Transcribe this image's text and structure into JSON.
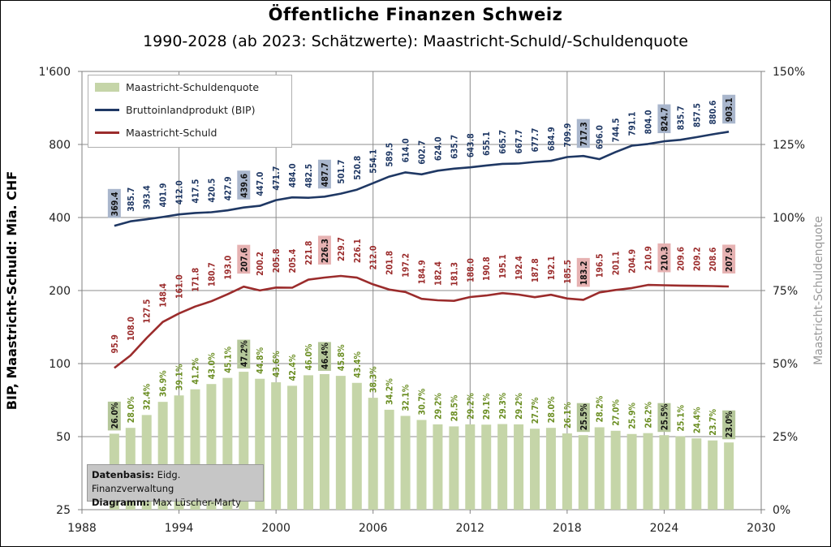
{
  "chart_data": {
    "type": "bar+line",
    "title": "Öffentliche Finanzen Schweiz",
    "subtitle": "1990-2028 (ab 2023: Schätzwerte): Maastricht-Schuld/-Schuldenquote",
    "ylabel": "BIP, Maastricht-Schuld: Mia. CHF",
    "y2label": "Maastricht-Schuldenquote",
    "y_scale": "log2",
    "ylim": [
      25,
      1600
    ],
    "y_ticks": [
      "25",
      "50",
      "100",
      "200",
      "400",
      "800",
      "1'600"
    ],
    "y2lim": [
      0,
      150
    ],
    "y2_ticks": [
      "0%",
      "25%",
      "50%",
      "75%",
      "100%",
      "125%",
      "150%"
    ],
    "xlim": [
      1988,
      2030
    ],
    "x_ticks": [
      "1988",
      "1994",
      "2000",
      "2006",
      "2012",
      "2018",
      "2024",
      "2030"
    ],
    "legend_position": "top-left",
    "years": [
      1990,
      1991,
      1992,
      1993,
      1994,
      1995,
      1996,
      1997,
      1998,
      1999,
      2000,
      2001,
      2002,
      2003,
      2004,
      2005,
      2006,
      2007,
      2008,
      2009,
      2010,
      2011,
      2012,
      2013,
      2014,
      2015,
      2016,
      2017,
      2018,
      2019,
      2020,
      2021,
      2022,
      2023,
      2024,
      2025,
      2026,
      2027,
      2028
    ],
    "series": [
      {
        "name": "Maastricht-Schuldenquote",
        "kind": "bar",
        "axis": "right",
        "color": "#c5d5a8",
        "label_color": "#6b8e23",
        "labels": [
          "26.0%",
          "28.0%",
          "32.4%",
          "36.9%",
          "39.1%",
          "41.2%",
          "43.0%",
          "45.1%",
          "47.2%",
          "44.8%",
          "43.6%",
          "42.4%",
          "46.0%",
          "46.4%",
          "45.8%",
          "43.4%",
          "38.3%",
          "34.2%",
          "32.1%",
          "30.7%",
          "29.2%",
          "28.5%",
          "29.2%",
          "29.1%",
          "29.3%",
          "29.2%",
          "27.7%",
          "28.0%",
          "26.1%",
          "25.5%",
          "28.2%",
          "27.0%",
          "25.9%",
          "26.2%",
          "25.5%",
          "25.1%",
          "24.4%",
          "23.7%",
          "23.0%"
        ],
        "values": [
          26.0,
          28.0,
          32.4,
          36.9,
          39.1,
          41.2,
          43.0,
          45.1,
          47.2,
          44.8,
          43.6,
          42.4,
          46.0,
          46.4,
          45.8,
          43.4,
          38.3,
          34.2,
          32.1,
          30.7,
          29.2,
          28.5,
          29.2,
          29.1,
          29.3,
          29.2,
          27.7,
          28.0,
          26.1,
          25.5,
          28.2,
          27.0,
          25.9,
          26.2,
          25.5,
          25.1,
          24.4,
          23.7,
          23.0
        ],
        "highlighted": [
          1990,
          1998,
          2003,
          2019,
          2024,
          2028
        ]
      },
      {
        "name": "Bruttoinlandprodukt (BIP)",
        "kind": "line",
        "axis": "left",
        "color": "#1f3864",
        "label_color": "#1f3864",
        "labels": [
          "369.4",
          "385.7",
          "393.4",
          "401.9",
          "412.0",
          "417.5",
          "420.5",
          "427.9",
          "439.6",
          "447.0",
          "471.7",
          "484.0",
          "482.5",
          "487.7",
          "501.7",
          "520.8",
          "554.1",
          "589.5",
          "614.0",
          "602.7",
          "624.0",
          "635.7",
          "643.8",
          "655.1",
          "665.7",
          "667.7",
          "677.7",
          "684.9",
          "709.9",
          "717.3",
          "696.0",
          "744.5",
          "791.1",
          "804.0",
          "824.7",
          "835.7",
          "857.5",
          "880.6",
          "903.1"
        ],
        "values": [
          369.4,
          385.7,
          393.4,
          401.9,
          412.0,
          417.5,
          420.5,
          427.9,
          439.6,
          447.0,
          471.7,
          484.0,
          482.5,
          487.7,
          501.7,
          520.8,
          554.1,
          589.5,
          614.0,
          602.7,
          624.0,
          635.7,
          643.8,
          655.1,
          665.7,
          667.7,
          677.7,
          684.9,
          709.9,
          717.3,
          696.0,
          744.5,
          791.1,
          804.0,
          824.7,
          835.7,
          857.5,
          880.6,
          903.1
        ],
        "highlighted": [
          1990,
          1998,
          2003,
          2019,
          2024,
          2028
        ]
      },
      {
        "name": "Maastricht-Schuld",
        "kind": "line",
        "axis": "left",
        "color": "#9b2c2c",
        "label_color": "#9b2c2c",
        "labels": [
          "95.9",
          "108.0",
          "127.5",
          "148.4",
          "161.0",
          "171.8",
          "180.7",
          "193.0",
          "207.6",
          "200.2",
          "205.8",
          "205.4",
          "221.8",
          "226.3",
          "229.7",
          "226.1",
          "212.0",
          "201.8",
          "197.2",
          "184.9",
          "182.4",
          "181.3",
          "188.0",
          "190.8",
          "195.1",
          "192.4",
          "187.8",
          "192.1",
          "185.5",
          "183.2",
          "196.5",
          "201.1",
          "204.9",
          "210.9",
          "210.3",
          "209.6",
          "209.2",
          "208.6",
          "207.9"
        ],
        "values": [
          95.9,
          108.0,
          127.5,
          148.4,
          161.0,
          171.8,
          180.7,
          193.0,
          207.6,
          200.2,
          205.8,
          205.4,
          221.8,
          226.3,
          229.7,
          226.1,
          212.0,
          201.8,
          197.2,
          184.9,
          182.4,
          181.3,
          188.0,
          190.8,
          195.1,
          192.4,
          187.8,
          192.1,
          185.5,
          183.2,
          196.5,
          201.1,
          204.9,
          210.9,
          210.3,
          209.6,
          209.2,
          208.6,
          207.9
        ],
        "highlighted": [
          1998,
          2003,
          2019,
          2024,
          2028
        ]
      }
    ],
    "highlight_colors": {
      "Maastricht-Schuldenquote": "#b5c79a",
      "Bruttoinlandprodukt (BIP)": "#a9b6cc",
      "Maastricht-Schuld": "#e6b2b2"
    }
  },
  "source": {
    "line1_label": "Datenbasis:",
    "line1_value": "Eidg. Finanzverwaltung",
    "line2_label": "Diagramm:",
    "line2_value": "Max Lüscher-Marty"
  }
}
